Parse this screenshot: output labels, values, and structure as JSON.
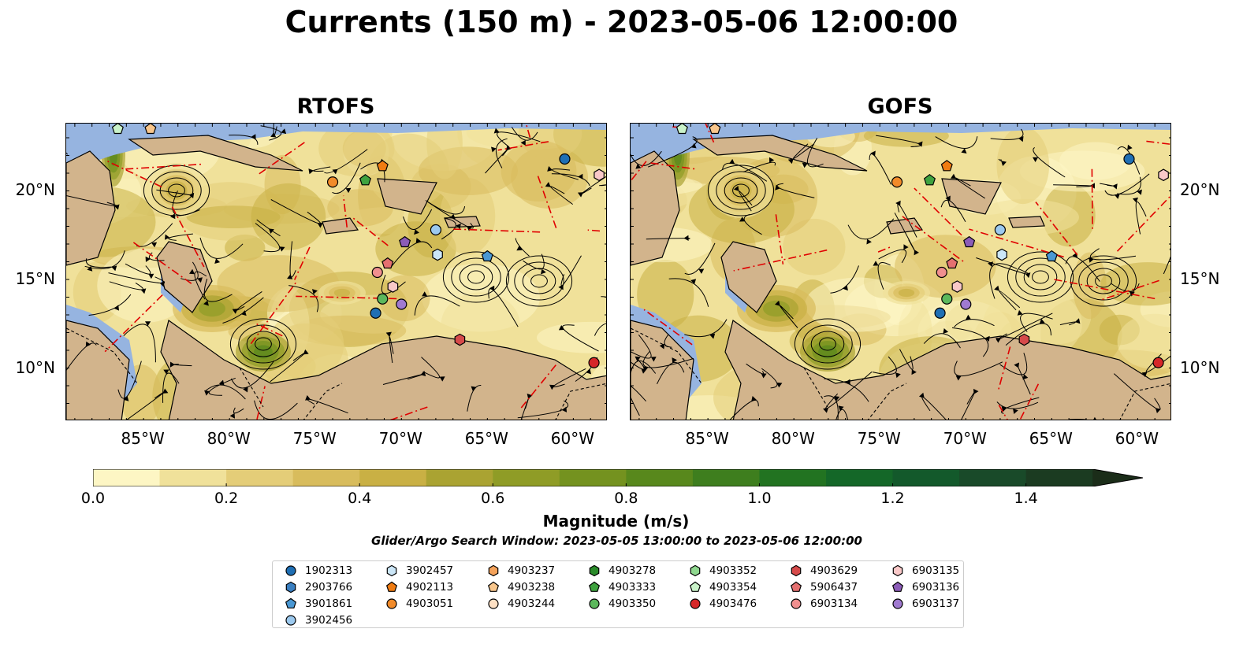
{
  "title": "Currents (150 m) - 2023-05-06 12:00:00",
  "panels": [
    {
      "title": "RTOFS"
    },
    {
      "title": "GOFS"
    }
  ],
  "axes": {
    "x_ticks": [
      "85°W",
      "80°W",
      "75°W",
      "70°W",
      "65°W",
      "60°W"
    ],
    "y_ticks": [
      "20°N",
      "15°N",
      "10°N"
    ],
    "lon_range": [
      -89.5,
      -58.0
    ],
    "lat_range": [
      7.0,
      23.8
    ]
  },
  "colorbar": {
    "label": "Magnitude (m/s)",
    "ticks": [
      "0.0",
      "0.2",
      "0.4",
      "0.6",
      "0.8",
      "1.0",
      "1.2",
      "1.4"
    ],
    "range": [
      0,
      1.5
    ],
    "step": 0.1,
    "extend": "max",
    "colors": [
      "#fdf6c4",
      "#f0e19a",
      "#e4cd78",
      "#d8bc5c",
      "#c9b044",
      "#aaa332",
      "#8f9c26",
      "#74921f",
      "#58881c",
      "#3e7e1e",
      "#227321",
      "#146728",
      "#13592b",
      "#194a29",
      "#1b3b21",
      "#1b2d19"
    ]
  },
  "subtitle": "Glider/Argo Search Window: 2023-05-05 13:00:00 to 2023-05-06 12:00:00",
  "map_colors": {
    "land": "#d2b48c",
    "water": "#96b4e0",
    "eez": "#e00000",
    "streamline": "#000000"
  },
  "legend": [
    {
      "id": "1902313",
      "shape": "circle",
      "color": "#1f6fb4"
    },
    {
      "id": "2903766",
      "shape": "hexagon",
      "color": "#3a7fc1"
    },
    {
      "id": "3901861",
      "shape": "pentagon",
      "color": "#4a98d4"
    },
    {
      "id": "3902456",
      "shape": "circle",
      "color": "#9cc9ee"
    },
    {
      "id": "3902457",
      "shape": "hexagon",
      "color": "#cbe6f7"
    },
    {
      "id": "4902113",
      "shape": "pentagon",
      "color": "#f07c12"
    },
    {
      "id": "4903051",
      "shape": "circle",
      "color": "#f28b2a"
    },
    {
      "id": "4903237",
      "shape": "hexagon",
      "color": "#f4a25a"
    },
    {
      "id": "4903238",
      "shape": "pentagon",
      "color": "#f8c68c"
    },
    {
      "id": "4903244",
      "shape": "circle",
      "color": "#fde0c4"
    },
    {
      "id": "4903278",
      "shape": "hexagon",
      "color": "#2a8b2a"
    },
    {
      "id": "4903333",
      "shape": "pentagon",
      "color": "#3fa23f"
    },
    {
      "id": "4903350",
      "shape": "circle",
      "color": "#5cb85c"
    },
    {
      "id": "4903352",
      "shape": "hexagon",
      "color": "#8fd88f"
    },
    {
      "id": "4903354",
      "shape": "pentagon",
      "color": "#c9f2c9"
    },
    {
      "id": "4903476",
      "shape": "circle",
      "color": "#d62728"
    },
    {
      "id": "4903629",
      "shape": "hexagon",
      "color": "#d64a4a"
    },
    {
      "id": "5906437",
      "shape": "pentagon",
      "color": "#e47070"
    },
    {
      "id": "6903134",
      "shape": "circle",
      "color": "#f08f8f"
    },
    {
      "id": "6903135",
      "shape": "hexagon",
      "color": "#f9c8c8"
    },
    {
      "id": "6903136",
      "shape": "pentagon",
      "color": "#8c5cb8"
    },
    {
      "id": "6903137",
      "shape": "circle",
      "color": "#a07ad0"
    }
  ],
  "floats_rtofs": [
    {
      "id": "4903354",
      "lon": -86.5,
      "lat": 23.5
    },
    {
      "id": "4903238",
      "lon": -84.6,
      "lat": 23.5
    },
    {
      "id": "1902313",
      "lon": -60.5,
      "lat": 21.8
    },
    {
      "id": "6903135",
      "lon": -58.5,
      "lat": 20.9
    },
    {
      "id": "4903051",
      "lon": -74.0,
      "lat": 20.5
    },
    {
      "id": "4902113",
      "lon": -71.1,
      "lat": 21.4
    },
    {
      "id": "4903333",
      "lon": -72.1,
      "lat": 20.6
    },
    {
      "id": "3902456",
      "lon": -68.0,
      "lat": 17.8
    },
    {
      "id": "6903136",
      "lon": -69.8,
      "lat": 17.1
    },
    {
      "id": "3902457",
      "lon": -67.9,
      "lat": 16.4
    },
    {
      "id": "3901861",
      "lon": -65.0,
      "lat": 16.3
    },
    {
      "id": "5906437",
      "lon": -70.8,
      "lat": 15.9
    },
    {
      "id": "6903134",
      "lon": -71.4,
      "lat": 15.4
    },
    {
      "id": "6903135",
      "lon": -70.5,
      "lat": 14.6
    },
    {
      "id": "4903350",
      "lon": -71.1,
      "lat": 13.9
    },
    {
      "id": "6903137",
      "lon": -70.0,
      "lat": 13.6
    },
    {
      "id": "1902313",
      "lon": -71.5,
      "lat": 13.1
    },
    {
      "id": "4903629",
      "lon": -66.6,
      "lat": 11.6
    },
    {
      "id": "4903476",
      "lon": -58.8,
      "lat": 10.3
    }
  ],
  "floats_gofs": [
    {
      "id": "4903354",
      "lon": -86.5,
      "lat": 23.5
    },
    {
      "id": "4903238",
      "lon": -84.6,
      "lat": 23.5
    },
    {
      "id": "1902313",
      "lon": -60.5,
      "lat": 21.8
    },
    {
      "id": "6903135",
      "lon": -58.5,
      "lat": 20.9
    },
    {
      "id": "4903051",
      "lon": -74.0,
      "lat": 20.5
    },
    {
      "id": "4902113",
      "lon": -71.1,
      "lat": 21.4
    },
    {
      "id": "4903333",
      "lon": -72.1,
      "lat": 20.6
    },
    {
      "id": "3902456",
      "lon": -68.0,
      "lat": 17.8
    },
    {
      "id": "6903136",
      "lon": -69.8,
      "lat": 17.1
    },
    {
      "id": "3902457",
      "lon": -67.9,
      "lat": 16.4
    },
    {
      "id": "3901861",
      "lon": -65.0,
      "lat": 16.3
    },
    {
      "id": "5906437",
      "lon": -70.8,
      "lat": 15.9
    },
    {
      "id": "6903134",
      "lon": -71.4,
      "lat": 15.4
    },
    {
      "id": "6903135",
      "lon": -70.5,
      "lat": 14.6
    },
    {
      "id": "4903350",
      "lon": -71.1,
      "lat": 13.9
    },
    {
      "id": "6903137",
      "lon": -70.0,
      "lat": 13.6
    },
    {
      "id": "1902313",
      "lon": -71.5,
      "lat": 13.1
    },
    {
      "id": "4903629",
      "lon": -66.6,
      "lat": 11.6
    },
    {
      "id": "4903476",
      "lon": -58.8,
      "lat": 10.3
    }
  ]
}
